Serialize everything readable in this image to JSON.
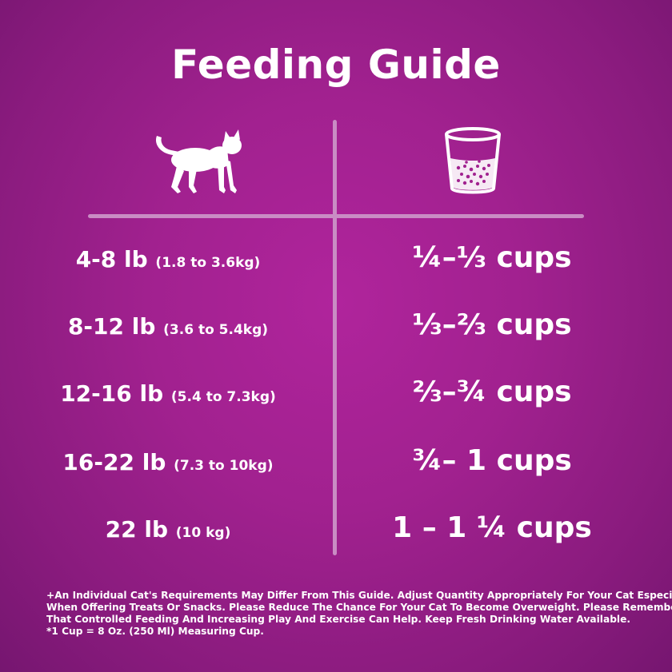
{
  "title": "Feeding Guide",
  "icons": {
    "left": "cat-icon",
    "right": "measuring-cup-icon"
  },
  "rows": [
    {
      "weight": "4-8 lb",
      "metric": "(1.8 to 3.6kg)",
      "portion": "¼–⅓ cups"
    },
    {
      "weight": "8-12 lb",
      "metric": "(3.6 to 5.4kg)",
      "portion": "⅓–⅔ cups"
    },
    {
      "weight": "12-16 lb",
      "metric": "(5.4 to 7.3kg)",
      "portion": "⅔–¾ cups"
    },
    {
      "weight": "16-22 lb",
      "metric": "(7.3 to 10kg)",
      "portion": "¾– 1 cups"
    },
    {
      "weight": "22 lb",
      "metric": "(10 kg)",
      "portion": "1 – 1 ¼ cups"
    }
  ],
  "footnote": {
    "line1": "+An Individual Cat's Requirements May Differ From This Guide.  Adjust Quantity Appropriately For Your Cat Especially",
    "line2": "When Offering Treats Or Snacks.  Please Reduce The Chance For Your Cat To Become Overweight.  Please Remember",
    "line3": "That Controlled Feeding And Increasing Play And Exercise Can Help.  Keep Fresh Drinking Water Available.",
    "line4": "*1 Cup = 8 Oz. (250 Ml) Measuring Cup."
  },
  "colors": {
    "background": "#a1218f",
    "divider": "#c98cc4",
    "text": "#ffffff"
  }
}
